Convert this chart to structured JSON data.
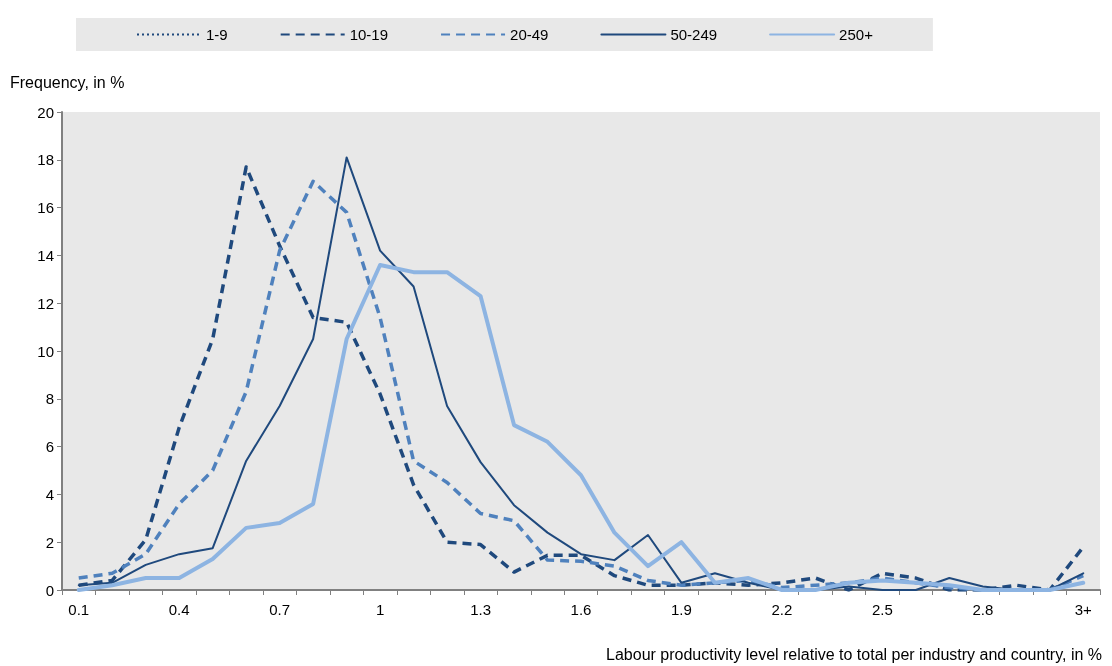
{
  "chart_data": {
    "type": "line",
    "xlabel": "Labour productivity level relative to total per industry and country, in %",
    "ylabel": "Frequency, in %",
    "categories": [
      "0.1",
      null,
      null,
      "0.4",
      null,
      null,
      "0.7",
      null,
      null,
      "1",
      null,
      null,
      "1.3",
      null,
      null,
      "1.6",
      null,
      null,
      "1.9",
      null,
      null,
      "2.2",
      null,
      null,
      "2.5",
      null,
      null,
      "2.8",
      null,
      null,
      "3+"
    ],
    "ylim": [
      0,
      20
    ],
    "yticks": [
      0,
      2,
      4,
      6,
      8,
      10,
      12,
      14,
      16,
      18,
      20
    ],
    "grid": false,
    "legend": "top",
    "marker": "none",
    "series": [
      {
        "name": "1-9",
        "color": "#1f497d",
        "line_style": "dotted",
        "values": [
          null,
          null,
          null,
          null,
          null,
          null,
          null,
          null,
          null,
          null,
          null,
          null,
          null,
          null,
          null,
          null,
          null,
          null,
          null,
          null,
          null,
          null,
          null,
          null,
          null,
          null,
          null,
          null,
          null,
          null,
          null
        ]
      },
      {
        "name": "10-19",
        "color": "#1f497d",
        "line_style": "dashed",
        "values": [
          0.2,
          0.4,
          2.1,
          6.8,
          10.5,
          17.7,
          14.4,
          11.4,
          11.2,
          8.2,
          4.4,
          2.0,
          1.9,
          0.75,
          1.45,
          1.45,
          0.6,
          0.2,
          0.2,
          0.3,
          0.2,
          0.3,
          0.5,
          0,
          0.7,
          0.5,
          0,
          0,
          0.2,
          0,
          1.8
        ]
      },
      {
        "name": "20-49",
        "color": "#4f81bd",
        "line_style": "dashed",
        "values": [
          0.5,
          0.7,
          1.5,
          3.6,
          5.0,
          8.3,
          14.2,
          17.1,
          15.8,
          11.4,
          5.4,
          4.5,
          3.2,
          2.9,
          1.25,
          1.2,
          1.0,
          0.4,
          0.2,
          0.3,
          0.4,
          0.1,
          0.2,
          0.3,
          0.5,
          0.3,
          0.1,
          0,
          0,
          0,
          0.6
        ]
      },
      {
        "name": "50-249",
        "color": "#1f497d",
        "line_style": "solid",
        "values": [
          0.2,
          0.3,
          1.05,
          1.5,
          1.75,
          5.4,
          7.7,
          10.5,
          18.1,
          14.2,
          12.7,
          7.7,
          5.35,
          3.55,
          2.4,
          1.5,
          1.25,
          2.3,
          0.3,
          0.7,
          0.3,
          0,
          0,
          0.15,
          0,
          0,
          0.5,
          0.15,
          0,
          0,
          0.7
        ]
      },
      {
        "name": "250+",
        "color": "#8db4e2",
        "line_style": "solid",
        "values": [
          0,
          0.2,
          0.5,
          0.5,
          1.3,
          2.6,
          2.8,
          3.6,
          10.5,
          13.6,
          13.3,
          13.3,
          12.3,
          6.9,
          6.2,
          4.8,
          2.4,
          1.0,
          2.0,
          0.3,
          0.5,
          0,
          0,
          0.3,
          0.4,
          0.3,
          0.2,
          0,
          0,
          0,
          0.3
        ]
      }
    ]
  }
}
